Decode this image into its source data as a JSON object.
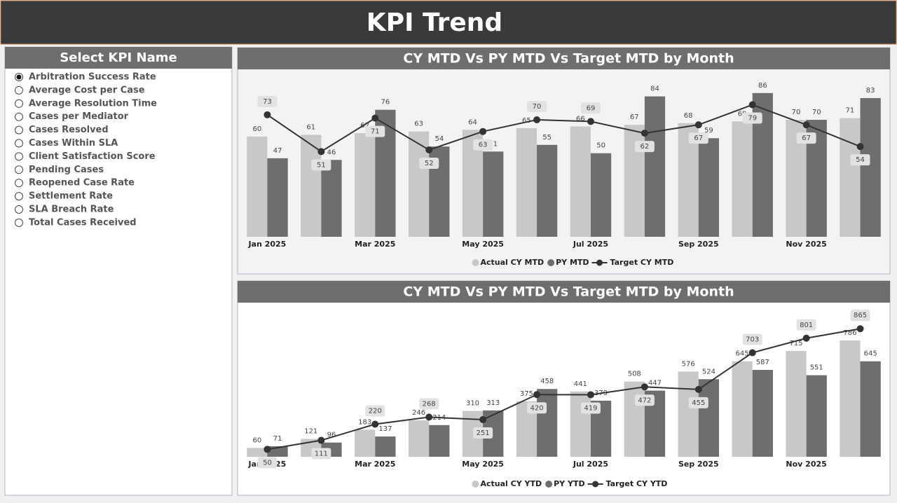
{
  "header": {
    "title": "KPI Trend"
  },
  "slicer": {
    "title": "Select KPI Name",
    "selected": 0,
    "items": [
      "Arbitration Success Rate",
      "Average Cost per Case",
      "Average Resolution Time",
      "Cases per Mediator",
      "Cases Resolved",
      "Cases Within SLA",
      "Client Satisfaction Score",
      "Pending Cases",
      "Reopened Case Rate",
      "Settlement Rate",
      "SLA Breach Rate",
      "Total Cases Received"
    ]
  },
  "chart_data": [
    {
      "type": "bar_line",
      "title": "CY MTD Vs PY MTD Vs Target MTD by Month",
      "categories": [
        "Jan 2025",
        null,
        "Mar 2025",
        null,
        "May 2025",
        null,
        "Jul 2025",
        null,
        "Sep 2025",
        null,
        "Nov 2025",
        null
      ],
      "series": [
        {
          "name": "Actual CY MTD",
          "color": "#c8c8c8",
          "kind": "bar",
          "values": [
            60,
            61,
            62,
            63,
            64,
            65,
            66,
            67,
            68,
            69,
            70,
            71
          ]
        },
        {
          "name": "PY MTD",
          "color": "#6e6e6e",
          "kind": "bar",
          "values": [
            47,
            46,
            76,
            54,
            51,
            55,
            50,
            84,
            59,
            86,
            70,
            83
          ]
        },
        {
          "name": "Target CY MTD",
          "color": "#333333",
          "kind": "line",
          "values": [
            73,
            51,
            71,
            52,
            63,
            70,
            69,
            62,
            67,
            79,
            67,
            54
          ]
        }
      ],
      "background": "#f3f3f3"
    },
    {
      "type": "bar_line",
      "title": "CY MTD Vs PY MTD Vs Target MTD by Month",
      "categories": [
        "Jan 2025",
        null,
        "Mar 2025",
        null,
        "May 2025",
        null,
        "Jul 2025",
        null,
        "Sep 2025",
        null,
        "Nov 2025",
        null
      ],
      "series": [
        {
          "name": "Actual CY YTD",
          "color": "#c8c8c8",
          "kind": "bar",
          "values": [
            60,
            121,
            183,
            246,
            310,
            375,
            441,
            508,
            576,
            645,
            715,
            786
          ]
        },
        {
          "name": "PY YTD",
          "color": "#6e6e6e",
          "kind": "bar",
          "values": [
            71,
            96,
            137,
            214,
            313,
            458,
            379,
            447,
            524,
            587,
            551,
            645
          ]
        },
        {
          "name": "Target CY YTD",
          "color": "#333333",
          "kind": "line",
          "values": [
            50,
            111,
            220,
            268,
            251,
            420,
            419,
            472,
            455,
            703,
            801,
            865
          ]
        }
      ],
      "background": "#ffffff"
    }
  ]
}
